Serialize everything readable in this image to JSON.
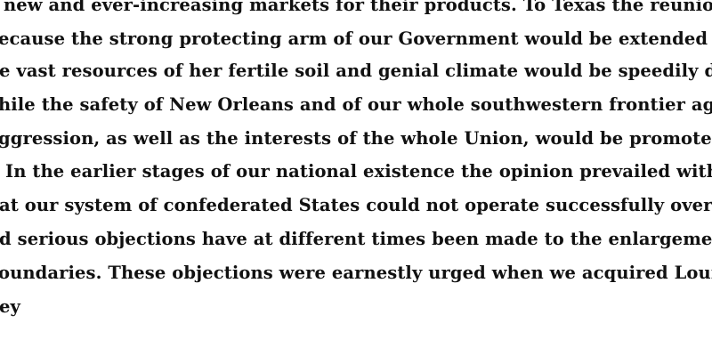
{
  "document": {
    "lines": [
      "new and ever-increasing markets for their products. To Texas the reunion is import",
      "ecause the strong protecting arm of our Government would be extended over her, ar",
      "e vast resources of her fertile soil and genial climate would be speedily developed,",
      "hile the safety of New Orleans and of our whole southwestern frontier against hostil",
      "ggression, as well as the interests of the whole Union, would be promoted by",
      "In the earlier stages of our national existence the opinion prevailed with some",
      "at our system of confederated States could not operate successfully over an extende",
      "d serious objections have at different times been made to the enlargement of our",
      "oundaries. These objections were earnestly urged when we acquired Louisiana. Expe",
      "ey"
    ]
  }
}
